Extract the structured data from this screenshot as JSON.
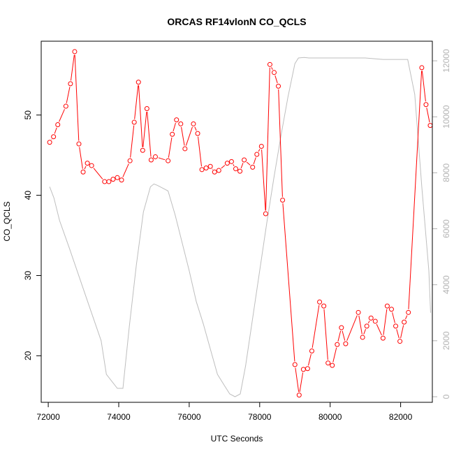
{
  "chart_data": {
    "type": "line",
    "title": "ORCAS RF14vlonN CO_QCLS",
    "xlabel": "UTC Seconds",
    "ylabel": "CO_QCLS",
    "xlim": [
      71800,
      82900
    ],
    "ylim": [
      14.2,
      59.2
    ],
    "y2lim": [
      -200,
      12700
    ],
    "x_ticks": [
      72000,
      74000,
      76000,
      78000,
      80000,
      82000
    ],
    "y_ticks": [
      20,
      30,
      40,
      50
    ],
    "y2_ticks": [
      0,
      2000,
      4000,
      6000,
      8000,
      10000,
      12000
    ],
    "series": [
      {
        "axis": "left",
        "color": "#ff0000",
        "marker": "open-circle",
        "x": [
          72040,
          72150,
          72270,
          72500,
          72630,
          72750,
          72870,
          72990,
          73110,
          73230,
          73600,
          73720,
          73840,
          73960,
          74080,
          74320,
          74440,
          74560,
          74680,
          74800,
          74920,
          75040,
          75400,
          75520,
          75640,
          75760,
          75880,
          76120,
          76240,
          76360,
          76480,
          76600,
          76720,
          76840,
          77080,
          77200,
          77320,
          77440,
          77560,
          77800,
          77920,
          78050,
          78170,
          78290,
          78410,
          78530,
          78650,
          79000,
          79120,
          79240,
          79360,
          79480,
          79700,
          79820,
          79940,
          80060,
          80200,
          80320,
          80440,
          80800,
          80920,
          81040,
          81160,
          81280,
          81500,
          81620,
          81740,
          81860,
          81980,
          82100,
          82220,
          82600,
          82720,
          82840
        ],
        "y": [
          46.6,
          47.3,
          48.8,
          51.1,
          53.9,
          57.9,
          46.4,
          42.9,
          44.0,
          43.7,
          41.7,
          41.7,
          42.0,
          42.2,
          41.9,
          44.3,
          49.1,
          54.1,
          45.6,
          50.8,
          44.4,
          44.8,
          44.3,
          47.6,
          49.4,
          48.9,
          45.8,
          48.9,
          47.7,
          43.2,
          43.4,
          43.6,
          42.9,
          43.1,
          44.0,
          44.2,
          43.3,
          43.0,
          44.4,
          43.5,
          45.1,
          46.1,
          37.7,
          56.3,
          55.3,
          53.6,
          39.4,
          18.9,
          15.1,
          18.3,
          18.4,
          20.6,
          26.7,
          26.2,
          19.1,
          18.8,
          21.4,
          23.5,
          21.5,
          25.4,
          22.3,
          23.7,
          24.7,
          24.3,
          22.2,
          26.2,
          25.8,
          23.7,
          21.8,
          24.2,
          25.4,
          55.9,
          51.3,
          48.7
        ]
      },
      {
        "axis": "right",
        "color": "#bebebe",
        "marker": "none",
        "x": [
          72040,
          72160,
          72320,
          72600,
          72900,
          73200,
          73500,
          73650,
          73960,
          74120,
          74300,
          74500,
          74700,
          74900,
          75000,
          75100,
          75250,
          75400,
          75600,
          75800,
          76000,
          76200,
          76400,
          76600,
          76800,
          77000,
          77150,
          77300,
          77450,
          77600,
          77800,
          78000,
          78200,
          78400,
          78600,
          78800,
          79000,
          79100,
          79260,
          79400,
          80000,
          80500,
          81000,
          81500,
          82000,
          82200,
          82400,
          82600,
          82800,
          82850
        ],
        "y": [
          7500,
          7100,
          6300,
          5300,
          4200,
          3100,
          2000,
          800,
          300,
          300,
          2500,
          4700,
          6600,
          7500,
          7600,
          7550,
          7450,
          7350,
          6500,
          5500,
          4500,
          3400,
          2600,
          1700,
          800,
          400,
          100,
          0,
          100,
          1100,
          2800,
          4500,
          6200,
          7800,
          9300,
          10700,
          11900,
          12100,
          12120,
          12100,
          12100,
          12100,
          12100,
          12050,
          12050,
          12050,
          10800,
          7500,
          4500,
          3000
        ]
      }
    ]
  }
}
